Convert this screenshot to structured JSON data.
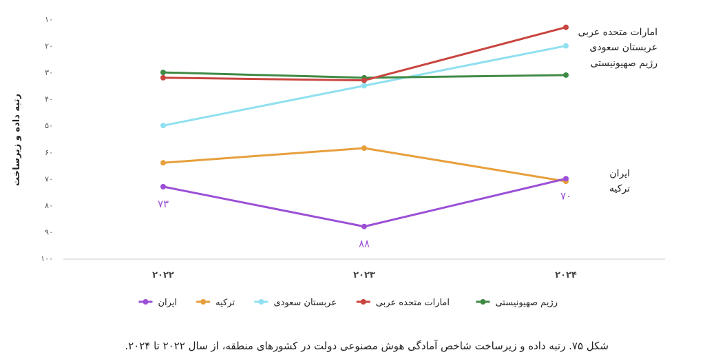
{
  "chart_data": {
    "type": "line",
    "ylabel": "رتبه داده و زیرساخت",
    "y_inverted": true,
    "ylim": [
      10,
      100
    ],
    "y_ticks": [
      10,
      20,
      30,
      40,
      50,
      60,
      70,
      80,
      90,
      100
    ],
    "y_tick_labels": [
      "۱۰",
      "۲۰",
      "۳۰",
      "۴۰",
      "۵۰",
      "۶۰",
      "۷۰",
      "۸۰",
      "۹۰",
      "۱۰۰"
    ],
    "categories": [
      "۲۰۲۲",
      "۲۰۲۳",
      "۲۰۲۴"
    ],
    "series": [
      {
        "name": "ایران",
        "color": "#9b4fd6",
        "values": [
          73,
          88,
          70
        ]
      },
      {
        "name": "ترکیه",
        "color": "#e79f3c",
        "values": [
          64,
          58.5,
          71
        ]
      },
      {
        "name": "عربستان سعودی",
        "color": "#8fe0f0",
        "values": [
          50,
          35,
          20
        ]
      },
      {
        "name": "امارات متحده عربی",
        "color": "#c9453f",
        "values": [
          32,
          33,
          13
        ]
      },
      {
        "name": "رژیم صهیونیستی",
        "color": "#3f8a44",
        "values": [
          30,
          32,
          31
        ]
      }
    ],
    "data_labels": [
      {
        "series": 0,
        "point": 0,
        "text": "۷۳"
      },
      {
        "series": 0,
        "point": 1,
        "text": "۸۸"
      },
      {
        "series": 0,
        "point": 2,
        "text": "۷۰"
      }
    ],
    "end_labels_top": [
      "امارات متحده عربی",
      "عربستان سعودی",
      "رژیم صهیونیستی"
    ],
    "end_labels_bottom": [
      "ایران",
      "ترکیه"
    ],
    "legend_position": "bottom",
    "grid": false
  },
  "caption": "شکل ۷۵. رتبه داده و زیرساخت شاخص آمادگی هوش مصنوعی دولت در کشورهای منطقه، از سال ۲۰۲۲ تا ۲۰۲۴."
}
